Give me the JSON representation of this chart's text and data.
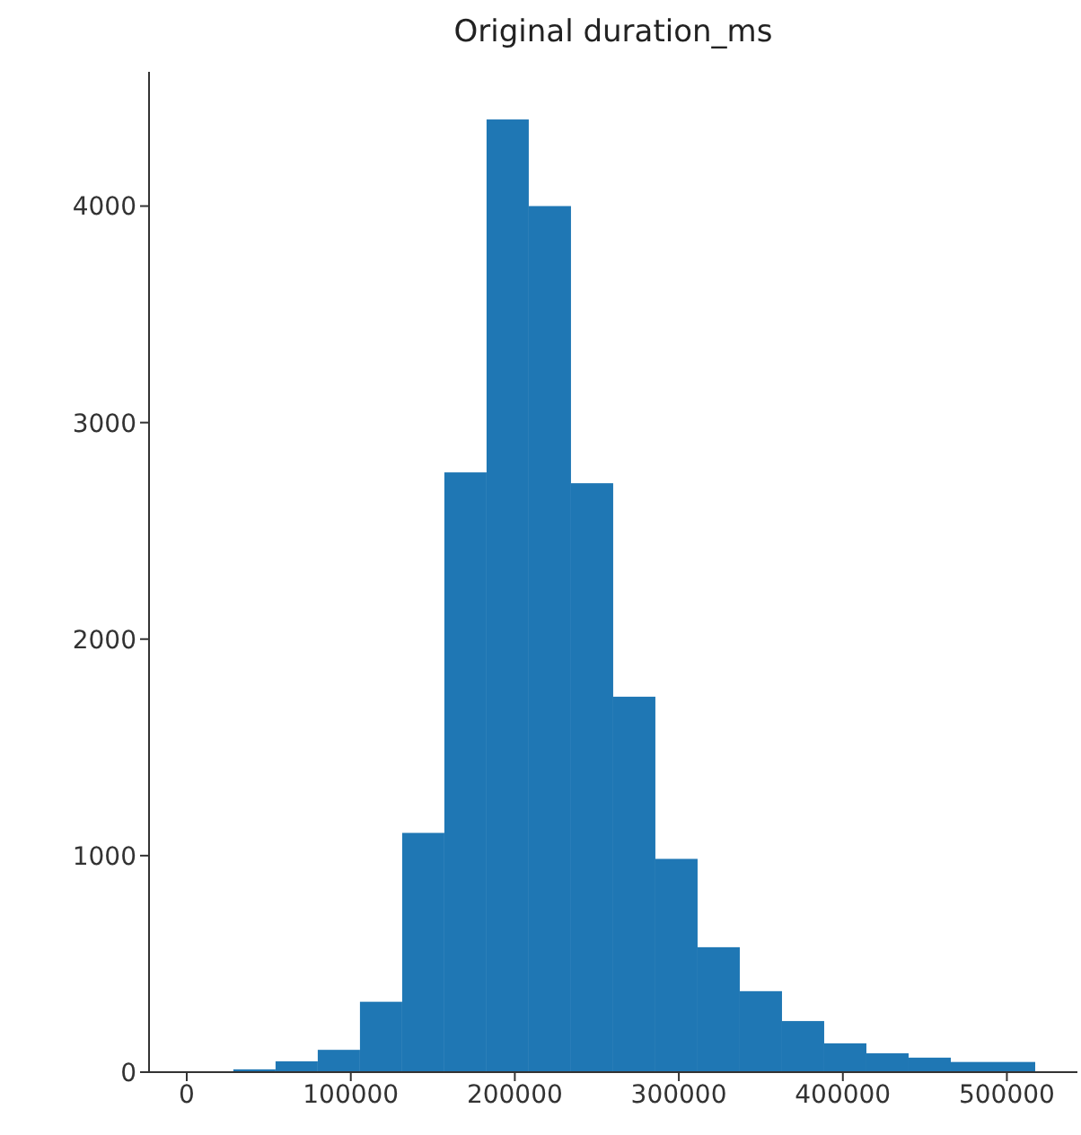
{
  "chart_data": {
    "type": "histogram",
    "title": "Original duration_ms",
    "color": "#1f77b4",
    "bins": [
      2670,
      28400,
      54130,
      79860,
      105590,
      131320,
      157050,
      182780,
      208510,
      234240,
      259970,
      285700,
      311430,
      337160,
      362890,
      388620,
      414350,
      440080,
      465810,
      491540,
      517270
    ],
    "values": [
      0,
      13,
      50,
      103,
      325,
      1105,
      2770,
      4400,
      4000,
      2720,
      1734,
      985,
      577,
      374,
      236,
      133,
      87,
      67,
      47,
      47
    ],
    "xlim": [
      -23000,
      543000
    ],
    "xticks": [
      0,
      100000,
      200000,
      300000,
      400000,
      500000
    ],
    "ylim": [
      0,
      4620
    ],
    "yticks": [
      0,
      1000,
      2000,
      3000,
      4000
    ],
    "grid": false
  }
}
